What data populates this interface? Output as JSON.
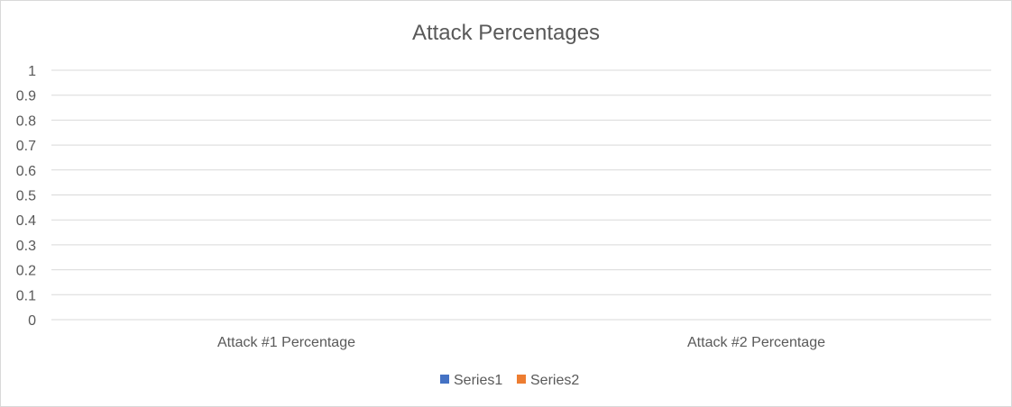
{
  "chart_data": {
    "type": "bar",
    "title": "Attack Percentages",
    "categories": [
      "Attack #1 Percentage",
      "Attack #2 Percentage"
    ],
    "series": [
      {
        "name": "Series1",
        "values": [
          0,
          0
        ],
        "color": "#4472c4"
      },
      {
        "name": "Series2",
        "values": [
          0,
          0
        ],
        "color": "#ed7d31"
      }
    ],
    "ylim": [
      0,
      1
    ],
    "yticks": [
      "0",
      "0.1",
      "0.2",
      "0.3",
      "0.4",
      "0.5",
      "0.6",
      "0.7",
      "0.8",
      "0.9",
      "1"
    ],
    "grid": true,
    "legend": "bottom",
    "colors": {
      "grid": "#d9d9d9",
      "text": "#595959",
      "border": "#d9d9d9"
    }
  }
}
